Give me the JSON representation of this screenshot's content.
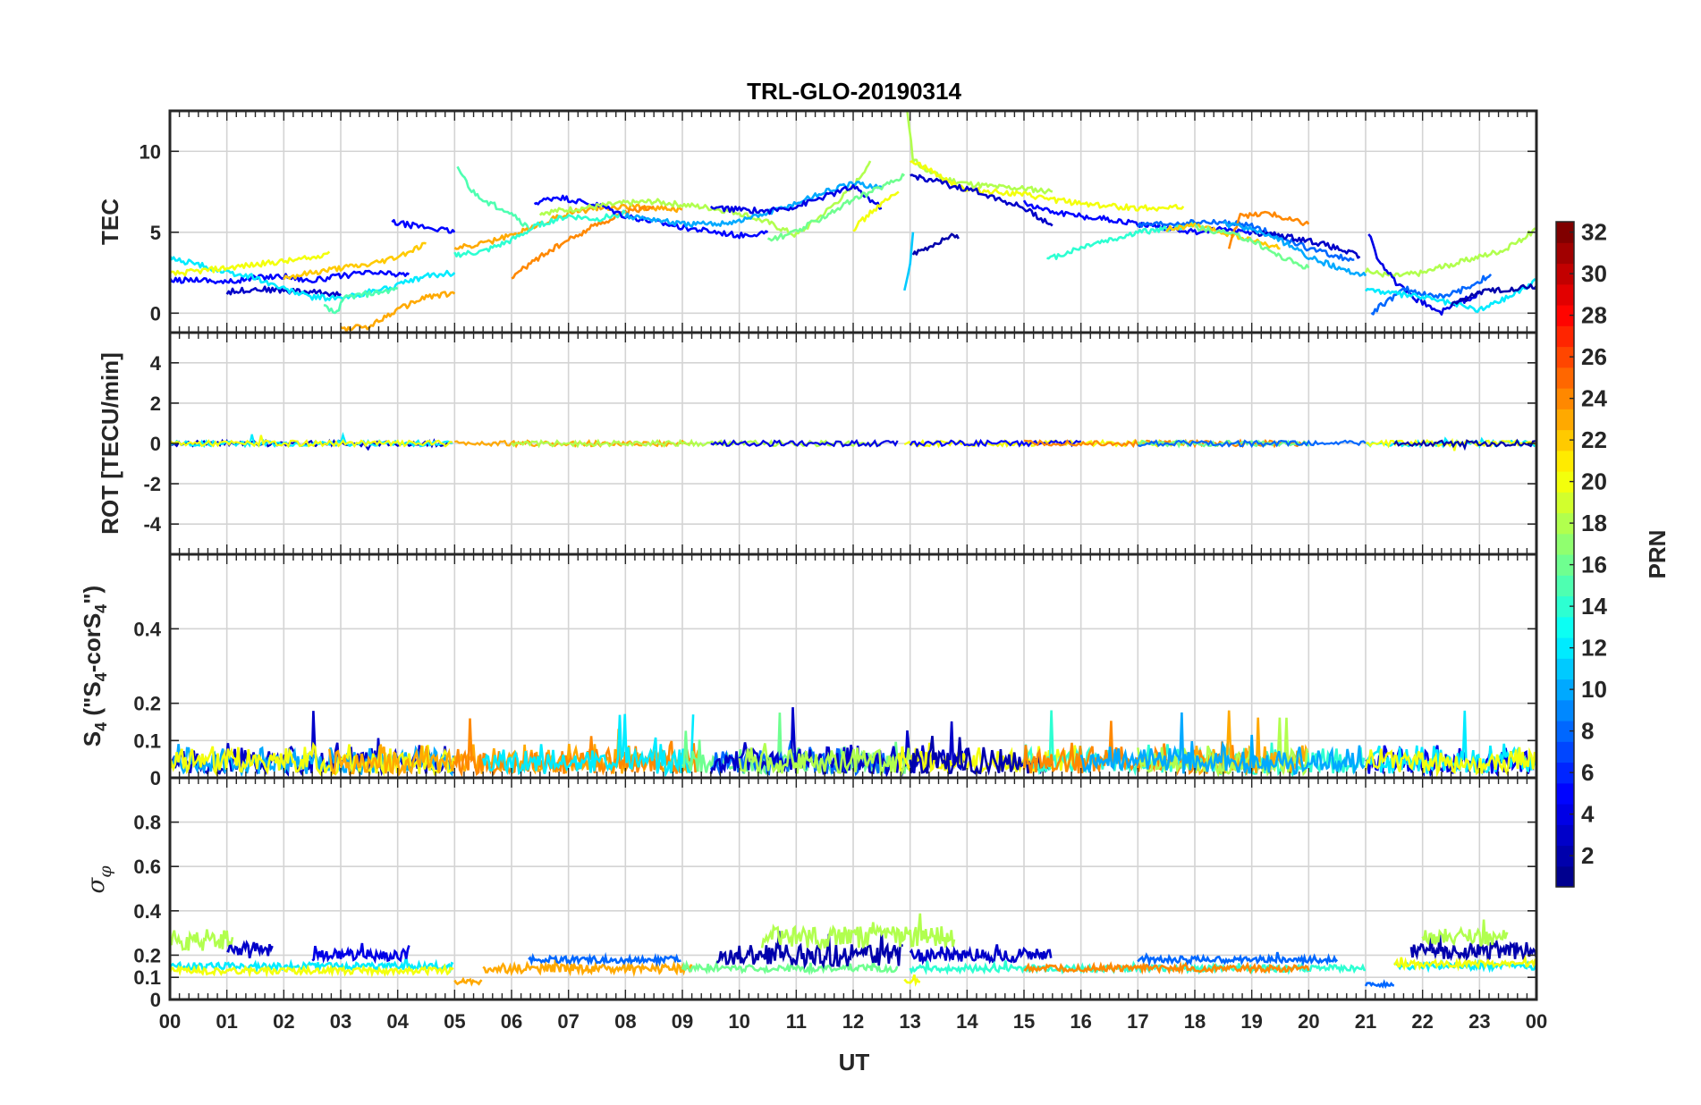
{
  "chart_data": {
    "type": "line",
    "title": "TRL-GLO-20190314",
    "xlabel": "UT",
    "x_range": [
      0,
      24
    ],
    "x_tick_labels": [
      "00",
      "01",
      "02",
      "03",
      "04",
      "05",
      "06",
      "07",
      "08",
      "09",
      "10",
      "11",
      "12",
      "13",
      "14",
      "15",
      "16",
      "17",
      "18",
      "19",
      "20",
      "21",
      "22",
      "23",
      "00"
    ],
    "colorbar": {
      "label": "PRN",
      "range": [
        1,
        32
      ],
      "tick_labels": [
        "2",
        "4",
        "6",
        "8",
        "10",
        "12",
        "14",
        "16",
        "18",
        "20",
        "22",
        "24",
        "26",
        "28",
        "30",
        "32"
      ],
      "colormap": [
        "#00008f",
        "#0000ff",
        "#0080ff",
        "#00ffff",
        "#80ff80",
        "#ffff00",
        "#ff8000",
        "#ff0000",
        "#800000"
      ]
    },
    "panels": [
      {
        "id": "tec",
        "ylabel": "TEC",
        "ylim": [
          -1.2,
          12.5
        ],
        "y_ticks": [
          0,
          5,
          10
        ],
        "y_tick_labels": [
          "0",
          "5",
          "10"
        ],
        "series": [
          {
            "prn": 5,
            "x": [
              0.0,
              0.5,
              1.0,
              1.5,
              2.0,
              2.5,
              3.0,
              3.5,
              4.0,
              4.2
            ],
            "y": [
              2.0,
              2.1,
              1.9,
              2.2,
              2.3,
              2.0,
              2.3,
              2.5,
              2.4,
              2.4
            ]
          },
          {
            "prn": 3,
            "x": [
              1.0,
              1.5,
              2.0,
              2.5,
              3.0
            ],
            "y": [
              1.3,
              1.5,
              1.4,
              1.3,
              1.2
            ]
          },
          {
            "prn": 12,
            "x": [
              0.0,
              0.5,
              1.0,
              1.5,
              2.0,
              2.5,
              3.0,
              3.5,
              4.0,
              4.5,
              5.0
            ],
            "y": [
              3.4,
              3.0,
              2.5,
              2.2,
              1.5,
              1.0,
              0.9,
              1.3,
              1.7,
              2.3,
              2.5
            ]
          },
          {
            "prn": 20,
            "x": [
              0.0,
              0.5,
              1.0,
              1.5,
              2.0,
              2.5,
              2.8
            ],
            "y": [
              2.4,
              2.6,
              2.8,
              3.0,
              3.2,
              3.4,
              3.8
            ]
          },
          {
            "prn": 22,
            "x": [
              2.0,
              2.5,
              3.0,
              3.5,
              4.0,
              4.5
            ],
            "y": [
              2.2,
              2.5,
              2.8,
              3.0,
              3.5,
              4.3
            ]
          },
          {
            "prn": 23,
            "x": [
              3.0,
              3.5,
              4.0,
              4.5,
              5.0
            ],
            "y": [
              -1.0,
              -0.8,
              0.2,
              1.0,
              1.2
            ]
          },
          {
            "prn": 15,
            "x": [
              2.7,
              2.9,
              3.1,
              3.5,
              4.0
            ],
            "y": [
              0.4,
              0.0,
              1.0,
              1.2,
              1.5
            ]
          },
          {
            "prn": 5,
            "x": [
              3.9,
              4.3,
              4.7,
              5.0
            ],
            "y": [
              5.6,
              5.4,
              5.2,
              5.0
            ]
          },
          {
            "prn": 15,
            "x": [
              5.05,
              5.3,
              5.6,
              6.0,
              6.3
            ],
            "y": [
              9.0,
              7.5,
              6.8,
              6.2,
              5.2
            ]
          },
          {
            "prn": 23,
            "x": [
              5.0,
              5.5,
              6.0,
              6.5,
              7.0,
              7.5,
              8.0,
              8.5,
              9.0
            ],
            "y": [
              4.0,
              4.3,
              4.8,
              5.5,
              6.2,
              6.5,
              6.6,
              6.5,
              6.4
            ]
          },
          {
            "prn": 24,
            "x": [
              6.0,
              6.5,
              7.0,
              7.5,
              8.0,
              8.5
            ],
            "y": [
              2.2,
              3.5,
              4.5,
              5.5,
              6.2,
              6.6
            ]
          },
          {
            "prn": 14,
            "x": [
              5.0,
              5.5,
              6.0,
              6.5,
              7.0,
              7.5,
              8.0
            ],
            "y": [
              3.6,
              3.8,
              4.5,
              5.5,
              6.0,
              5.8,
              6.2
            ]
          },
          {
            "prn": 5,
            "x": [
              6.4,
              6.8,
              7.2,
              7.6,
              8.0,
              9.0,
              10.0,
              10.5
            ],
            "y": [
              6.8,
              7.2,
              6.9,
              6.6,
              6.0,
              5.3,
              4.8,
              5.0
            ]
          },
          {
            "prn": 18,
            "x": [
              6.5,
              7.0,
              7.5,
              8.0,
              8.5,
              9.0,
              9.5,
              10.0,
              10.5,
              11.0,
              11.5,
              12.0,
              12.3
            ],
            "y": [
              6.2,
              6.4,
              6.6,
              6.8,
              6.9,
              6.7,
              6.5,
              6.2,
              5.6,
              4.8,
              6.2,
              7.8,
              9.4
            ]
          },
          {
            "prn": 10,
            "x": [
              8.0,
              8.5,
              9.0,
              9.5,
              10.0,
              10.5,
              11.0,
              11.5,
              12.0,
              12.5
            ],
            "y": [
              6.0,
              5.8,
              5.5,
              5.5,
              5.7,
              6.2,
              6.8,
              7.5,
              8.0,
              7.8
            ]
          },
          {
            "prn": 4,
            "x": [
              9.5,
              10.0,
              10.5,
              11.0,
              11.5,
              12.0,
              12.5
            ],
            "y": [
              6.5,
              6.4,
              6.3,
              6.6,
              7.2,
              7.8,
              6.5
            ]
          },
          {
            "prn": 16,
            "x": [
              10.5,
              11.0,
              11.5,
              12.0,
              12.5,
              12.9
            ],
            "y": [
              4.5,
              5.0,
              6.0,
              7.0,
              7.8,
              8.5
            ]
          },
          {
            "prn": 20,
            "x": [
              12.0,
              12.4,
              12.8
            ],
            "y": [
              5.2,
              6.5,
              7.5
            ]
          },
          {
            "prn": 18,
            "x": [
              12.95,
              13.05,
              13.3,
              13.6,
              14.0,
              14.5,
              15.0,
              15.5
            ],
            "y": [
              12.5,
              9.5,
              8.8,
              8.3,
              8.0,
              7.8,
              7.7,
              7.5
            ]
          },
          {
            "prn": 20,
            "x": [
              13.0,
              13.5,
              14.0,
              14.5,
              15.0,
              15.5,
              16.0,
              16.5,
              17.0,
              17.5,
              17.8
            ],
            "y": [
              9.5,
              8.5,
              7.6,
              7.5,
              7.3,
              7.0,
              6.8,
              6.6,
              6.5,
              6.5,
              6.6
            ]
          },
          {
            "prn": 3,
            "x": [
              13.0,
              13.4,
              13.8,
              14.2,
              14.6,
              15.0,
              15.5
            ],
            "y": [
              8.5,
              8.2,
              7.8,
              7.5,
              7.0,
              6.5,
              5.4
            ]
          },
          {
            "prn": 2,
            "x": [
              13.05,
              13.3,
              13.5,
              13.7,
              13.85
            ],
            "y": [
              3.6,
              4.0,
              4.4,
              4.8,
              4.6
            ]
          },
          {
            "prn": 11,
            "x": [
              12.9,
              13.0,
              13.05
            ],
            "y": [
              1.4,
              3.0,
              5.0
            ]
          },
          {
            "prn": 5,
            "x": [
              15.0,
              15.5,
              16.0,
              16.5,
              17.0,
              17.5,
              18.0,
              18.5,
              19.0
            ],
            "y": [
              6.8,
              6.3,
              6.0,
              5.8,
              5.5,
              5.3,
              5.0,
              5.2,
              5.0
            ]
          },
          {
            "prn": 14,
            "x": [
              15.4,
              15.8,
              16.2,
              16.6,
              17.0,
              17.5,
              18.0
            ],
            "y": [
              3.3,
              3.8,
              4.3,
              4.6,
              5.0,
              5.2,
              5.5
            ]
          },
          {
            "prn": 8,
            "x": [
              17.0,
              17.5,
              18.0,
              18.5,
              19.0,
              19.5,
              20.0,
              20.5,
              20.8
            ],
            "y": [
              5.4,
              5.5,
              5.6,
              5.6,
              5.4,
              4.7,
              4.0,
              3.5,
              3.3
            ]
          },
          {
            "prn": 22,
            "x": [
              17.5,
              18.0,
              18.5,
              19.0,
              19.5
            ],
            "y": [
              5.2,
              5.4,
              5.0,
              4.5,
              4.0
            ]
          },
          {
            "prn": 24,
            "x": [
              18.6,
              18.8,
              19.0,
              19.3,
              19.6,
              20.0
            ],
            "y": [
              4.0,
              6.2,
              6.0,
              6.2,
              5.8,
              5.5
            ]
          },
          {
            "prn": 16,
            "x": [
              18.0,
              18.5,
              19.0,
              19.5,
              20.0
            ],
            "y": [
              5.3,
              5.0,
              4.5,
              3.5,
              2.8
            ]
          },
          {
            "prn": 3,
            "x": [
              19.0,
              19.5,
              20.0,
              20.5,
              20.9
            ],
            "y": [
              5.0,
              4.8,
              4.5,
              4.0,
              3.5
            ]
          },
          {
            "prn": 10,
            "x": [
              18.5,
              19.0,
              19.5,
              20.0,
              20.5,
              21.0
            ],
            "y": [
              5.5,
              5.2,
              4.5,
              3.5,
              2.8,
              2.3
            ]
          },
          {
            "prn": 18,
            "x": [
              21.0,
              21.5,
              22.0,
              22.5,
              23.0,
              23.5,
              24.0
            ],
            "y": [
              2.6,
              2.3,
              2.5,
              3.0,
              3.5,
              4.0,
              5.2
            ]
          },
          {
            "prn": 4,
            "x": [
              21.05,
              21.2,
              21.5,
              21.8,
              22.1,
              22.3,
              22.6,
              23.0
            ],
            "y": [
              5.0,
              3.5,
              2.0,
              1.0,
              0.5,
              0.0,
              0.6,
              1.2
            ]
          },
          {
            "prn": 8,
            "x": [
              21.1,
              21.4,
              21.7,
              22.0,
              22.4,
              22.8,
              23.2
            ],
            "y": [
              0.0,
              0.8,
              1.5,
              1.2,
              1.0,
              1.6,
              2.4
            ]
          },
          {
            "prn": 12,
            "x": [
              21.0,
              21.5,
              22.0,
              22.5,
              23.0,
              23.5,
              24.0
            ],
            "y": [
              1.5,
              1.2,
              1.0,
              0.6,
              0.2,
              1.0,
              2.0
            ]
          },
          {
            "prn": 2,
            "x": [
              22.5,
              23.0,
              23.5,
              24.0
            ],
            "y": [
              0.5,
              1.3,
              1.5,
              1.7
            ]
          }
        ]
      },
      {
        "id": "rot",
        "ylabel": "ROT [TECU/min]",
        "ylim": [
          -5.5,
          5.5
        ],
        "y_ticks": [
          -4,
          -2,
          0,
          2,
          4
        ],
        "y_tick_labels": [
          "-4",
          "-2",
          "0",
          "2",
          "4"
        ],
        "noise": {
          "amp": 0.28,
          "spike_level": 0.45,
          "seed": 2
        }
      },
      {
        "id": "s4",
        "ylabel_main": "S",
        "ylabel_sub": "4",
        "ylabel_rest": " (\"S",
        "ylabel_sub2": "4",
        "ylabel_rest2": "-corS",
        "ylabel_sub3": "4",
        "ylabel_end": "\")",
        "ylim": [
          0,
          0.6
        ],
        "y_ticks": [
          0,
          0.1,
          0.2,
          0.4
        ],
        "y_tick_labels": [
          "0",
          "0.1",
          "0.2",
          "0.4"
        ],
        "noise": {
          "base": 0.035,
          "amp": 0.085,
          "spike_level": 0.19,
          "seed": 3
        }
      },
      {
        "id": "sigma",
        "ylabel_symbol": "σ",
        "ylabel_sub": "φ",
        "ylim": [
          0,
          1.0
        ],
        "y_ticks": [
          0,
          0.1,
          0.2,
          0.4,
          0.6,
          0.8
        ],
        "y_tick_labels": [
          "0",
          "0.1",
          "0.2",
          "0.4",
          "0.6",
          "0.8"
        ],
        "segments": [
          {
            "prn": 18,
            "start": 0.0,
            "end": 1.1,
            "level": 0.27,
            "amp": 0.1
          },
          {
            "prn": 3,
            "start": 1.0,
            "end": 1.8,
            "level": 0.22,
            "amp": 0.08
          },
          {
            "prn": 12,
            "start": 0.0,
            "end": 5.0,
            "level": 0.15,
            "amp": 0.03
          },
          {
            "prn": 20,
            "start": 0.0,
            "end": 5.0,
            "level": 0.13,
            "amp": 0.03
          },
          {
            "prn": 4,
            "start": 2.5,
            "end": 4.2,
            "level": 0.2,
            "amp": 0.05
          },
          {
            "prn": 23,
            "start": 5.0,
            "end": 5.5,
            "level": 0.08,
            "amp": 0.02
          },
          {
            "prn": 23,
            "start": 5.5,
            "end": 9.2,
            "level": 0.14,
            "amp": 0.04
          },
          {
            "prn": 8,
            "start": 6.3,
            "end": 9.0,
            "level": 0.18,
            "amp": 0.03
          },
          {
            "prn": 16,
            "start": 9.0,
            "end": 12.8,
            "level": 0.14,
            "amp": 0.03
          },
          {
            "prn": 2,
            "start": 9.6,
            "end": 12.9,
            "level": 0.2,
            "amp": 0.1
          },
          {
            "prn": 18,
            "start": 10.4,
            "end": 13.8,
            "level": 0.28,
            "amp": 0.1
          },
          {
            "prn": 20,
            "start": 12.9,
            "end": 13.2,
            "level": 0.08,
            "amp": 0.03
          },
          {
            "prn": 3,
            "start": 13.0,
            "end": 15.5,
            "level": 0.2,
            "amp": 0.06
          },
          {
            "prn": 14,
            "start": 13.0,
            "end": 21.0,
            "level": 0.14,
            "amp": 0.03
          },
          {
            "prn": 24,
            "start": 15.0,
            "end": 20.0,
            "level": 0.14,
            "amp": 0.03
          },
          {
            "prn": 8,
            "start": 17.0,
            "end": 20.5,
            "level": 0.18,
            "amp": 0.03
          },
          {
            "prn": 8,
            "start": 21.0,
            "end": 21.5,
            "level": 0.07,
            "amp": 0.02
          },
          {
            "prn": 12,
            "start": 21.5,
            "end": 24.0,
            "level": 0.15,
            "amp": 0.03
          },
          {
            "prn": 2,
            "start": 21.8,
            "end": 24.0,
            "level": 0.22,
            "amp": 0.08
          },
          {
            "prn": 18,
            "start": 22.0,
            "end": 23.5,
            "level": 0.28,
            "amp": 0.08
          },
          {
            "prn": 20,
            "start": 21.5,
            "end": 24.0,
            "level": 0.16,
            "amp": 0.03
          }
        ]
      }
    ]
  }
}
